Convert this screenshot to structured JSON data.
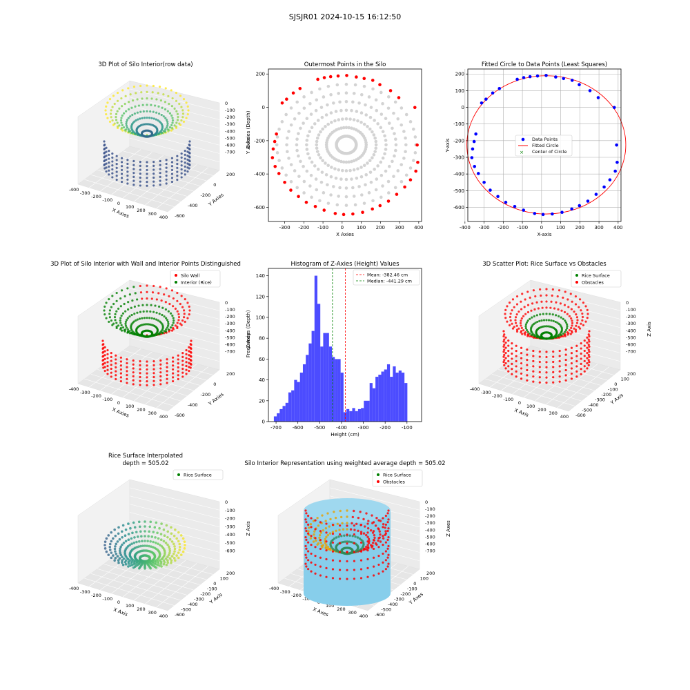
{
  "figure": {
    "suptitle": "SJSJR01 2024-10-15 16:12:50"
  },
  "chart_data": [
    {
      "type": "scatter3d",
      "title": "3D Plot of Silo Interior(row data)",
      "xlabel": "X Axies",
      "ylabel": "Y Axies",
      "zlabel": "Z Axies (Depth)",
      "xticks": [
        "-400",
        "-300",
        "-200",
        "-100",
        "0",
        "100",
        "200",
        "300",
        "400"
      ],
      "yticks": [
        "200",
        "0",
        "-200",
        "-400",
        "-600"
      ],
      "zticks": [
        "0",
        "-100",
        "-200",
        "-300",
        "-400",
        "-500",
        "-600",
        "-700"
      ],
      "colormap": "viridis",
      "grid": true
    },
    {
      "type": "scatter",
      "title": "Outermost Points in the Silo",
      "xlabel": "X Axies",
      "ylabel": "Y Axies",
      "xlim": [
        -385,
        415
      ],
      "ylim": [
        -685,
        230
      ],
      "xticks": [
        -300,
        -200,
        -100,
        0,
        100,
        200,
        300,
        400
      ],
      "yticks": [
        200,
        0,
        -200,
        -400,
        -600
      ],
      "interior_color": "#d3d3d3",
      "outer_color": "#ff0000",
      "center": [
        22,
        -225
      ],
      "radius": 415,
      "rings": 7,
      "spokes": 48,
      "outer_points": [
        [
          -313,
          26
        ],
        [
          -290,
          49
        ],
        [
          -255,
          86
        ],
        [
          -220,
          113
        ],
        [
          -127,
          168
        ],
        [
          -93,
          178
        ],
        [
          -60,
          184
        ],
        [
          -21,
          188
        ],
        [
          24,
          191
        ],
        [
          74,
          182
        ],
        [
          115,
          173
        ],
        [
          160,
          162
        ],
        [
          197,
          136
        ],
        [
          253,
          100
        ],
        [
          296,
          58
        ],
        [
          380,
          -1
        ],
        [
          -343,
          -160
        ],
        [
          -352,
          -205
        ],
        [
          -360,
          -250
        ],
        [
          -364,
          -302
        ],
        [
          -350,
          -355
        ],
        [
          -330,
          -397
        ],
        [
          -300,
          -450
        ],
        [
          -268,
          -497
        ],
        [
          -228,
          -535
        ],
        [
          -187,
          -570
        ],
        [
          -140,
          -595
        ],
        [
          -94,
          -617
        ],
        [
          -36,
          -637
        ],
        [
          8,
          -643
        ],
        [
          56,
          -640
        ],
        [
          107,
          -630
        ],
        [
          158,
          -610
        ],
        [
          198,
          -590
        ],
        [
          242,
          -563
        ],
        [
          285,
          -522
        ],
        [
          327,
          -478
        ],
        [
          357,
          -435
        ],
        [
          385,
          -383
        ],
        [
          395,
          -330
        ],
        [
          392,
          -226
        ]
      ]
    },
    {
      "type": "scatter",
      "title": "Fitted Circle to Data Points (Least Squares)",
      "xlabel": "X-axis",
      "ylabel": "Y-axis",
      "xlim": [
        -385,
        415
      ],
      "ylim": [
        -685,
        230
      ],
      "xticks": [
        -400,
        -300,
        -200,
        -100,
        0,
        100,
        200,
        300,
        400
      ],
      "yticks": [
        200,
        100,
        0,
        -100,
        -200,
        -300,
        -400,
        -500,
        -600
      ],
      "grid": true,
      "circle": {
        "cx": 25,
        "cy": -225,
        "r": 415
      },
      "center": [
        25,
        -225
      ],
      "legend": [
        "Data Points",
        "Fitted Circle",
        "Center of Circle"
      ],
      "legend_loc": "center"
    },
    {
      "type": "scatter3d",
      "title": "3D Plot of Silo Interior with Wall and Interior Points Distinguished",
      "xlabel": "X Axies",
      "ylabel": "Y Axies",
      "zlabel": "Z Axies (Depth)",
      "xticks": [
        "-400",
        "-300",
        "-200",
        "-100",
        "0",
        "100",
        "200",
        "300",
        "400"
      ],
      "yticks": [
        "200",
        "0",
        "-200",
        "-400",
        "-600"
      ],
      "zticks": [
        "0",
        "-100",
        "-200",
        "-300",
        "-400",
        "-500",
        "-600",
        "-700"
      ],
      "series": [
        {
          "name": "Silo Wall",
          "color": "#ff0000"
        },
        {
          "name": "Interior (Rice)",
          "color": "#008000"
        }
      ],
      "legend_loc": "upper right"
    },
    {
      "type": "histogram",
      "title": "Histogram of Z-Axies (Height) Values",
      "xlabel": "Height (cm)",
      "ylabel": "Frequency",
      "xlim": [
        -735,
        -33
      ],
      "ylim": [
        0,
        147
      ],
      "xticks": [
        -700,
        -600,
        -500,
        -400,
        -300,
        -200,
        -100
      ],
      "yticks": [
        0,
        20,
        40,
        60,
        80,
        100,
        120,
        140
      ],
      "bin_start": -710,
      "bin_width": 13.3,
      "counts": [
        5,
        8,
        12,
        15,
        18,
        28,
        30,
        40,
        38,
        47,
        55,
        64,
        75,
        87,
        140,
        113,
        72,
        85,
        85,
        72,
        62,
        60,
        60,
        47,
        9,
        12,
        10,
        13,
        10,
        12,
        13,
        20,
        20,
        37,
        32,
        43,
        45,
        48,
        50,
        55,
        43,
        53,
        47,
        49,
        47,
        37
      ],
      "mean": -382.46,
      "median": -441.29,
      "legend": [
        "Mean: -382.46 cm",
        "Median: -441.29 cm"
      ],
      "bar_color": "#4c4cff"
    },
    {
      "type": "scatter3d",
      "title": "3D Scatter Plot: Rice Surface vs Obstacles",
      "xlabel": "X Axis",
      "ylabel": "Y Axis",
      "zlabel": "Z Axis",
      "xticks": [
        "-400",
        "-300",
        "-200",
        "-100",
        "0",
        "100",
        "200",
        "300",
        "400"
      ],
      "yticks": [
        "200",
        "100",
        "0",
        "-100",
        "-200",
        "-300",
        "-400",
        "-500",
        "-600"
      ],
      "zticks": [
        "0",
        "-100",
        "-200",
        "-300",
        "-400",
        "-500",
        "-600",
        "-700"
      ],
      "series": [
        {
          "name": "Rice Surface",
          "color": "#008000"
        },
        {
          "name": "Obstacles",
          "color": "#ff0000"
        }
      ]
    },
    {
      "type": "surface3d",
      "title": "Rice Surface Interpolated",
      "subtitle": "depth = 505.02",
      "xlabel": "X Axis",
      "ylabel": "Y Axis",
      "zlabel": "Z Axis",
      "xticks": [
        "-400",
        "-300",
        "-200",
        "-100",
        "0",
        "100",
        "200",
        "300",
        "400"
      ],
      "yticks": [
        "200",
        "100",
        "0",
        "-100",
        "-200",
        "-300",
        "-400",
        "-500",
        "-600"
      ],
      "zticks": [
        "0",
        "-100",
        "-200",
        "-300",
        "-400",
        "-500",
        "-600"
      ],
      "series": [
        {
          "name": "Rice Surface",
          "color": "#008000"
        }
      ]
    },
    {
      "type": "scatter3d",
      "title": "Silo Interior Representation using weighted average depth = 505.02",
      "xlabel": "X Axes",
      "ylabel": "Y Axes",
      "zlabel": "Z Axes",
      "xticks": [
        "-400",
        "-300",
        "-200",
        "-100",
        "0",
        "100",
        "200",
        "300",
        "400"
      ],
      "yticks": [
        "200",
        "100",
        "0",
        "-100",
        "-200",
        "-300",
        "-400",
        "-500",
        "-600"
      ],
      "zticks": [
        "0",
        "-100",
        "-200",
        "-300",
        "-400",
        "-500",
        "-600",
        "-700"
      ],
      "series": [
        {
          "name": "Rice Surface",
          "color": "#008000"
        },
        {
          "name": "Obstacles",
          "color": "#ff0000"
        }
      ],
      "cylinder_color": "#87ceeb"
    }
  ]
}
